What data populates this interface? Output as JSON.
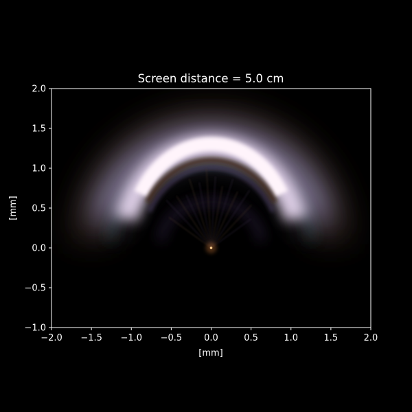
{
  "chart_data": {
    "type": "heatmap",
    "title": "Screen distance = 5.0 cm",
    "xlabel": "[mm]",
    "ylabel": "[mm]",
    "xlim": [
      -2.0,
      2.0
    ],
    "ylim": [
      -1.0,
      2.0
    ],
    "xticks": [
      -2.0,
      -1.5,
      -1.0,
      -0.5,
      0.0,
      0.5,
      1.0,
      1.5,
      2.0
    ],
    "xtick_labels": [
      "−2.0",
      "−1.5",
      "−1.0",
      "−0.5",
      "0.0",
      "0.5",
      "1.0",
      "1.5",
      "2.0"
    ],
    "yticks": [
      -1.0,
      -0.5,
      0.0,
      0.5,
      1.0,
      1.5,
      2.0
    ],
    "ytick_labels": [
      "−1.0",
      "−0.5",
      "0.0",
      "0.5",
      "1.0",
      "1.5",
      "2.0"
    ],
    "grid": false,
    "colors": {
      "background": "#000000",
      "axes": "#ffffff",
      "text": "#ffffff",
      "arc_core": "#fff4fb",
      "arc_glow": "#ecdcf4",
      "arc_outer": "#b6aee0",
      "arc_inner_edge": "#3a2410",
      "source_point": "#ffd090"
    },
    "features": {
      "bright_arc": {
        "center_x": 0.0,
        "center_y": 0.0,
        "inner_radius_top": 1.1,
        "outer_radius_top": 1.45,
        "angular_extent_deg": [
          20,
          160
        ]
      },
      "dim_outer_halo_radius": 1.5,
      "inner_faint_rings_radius": [
        0.5,
        1.0
      ],
      "point_source": {
        "x": 0.0,
        "y": 0.0
      }
    }
  }
}
